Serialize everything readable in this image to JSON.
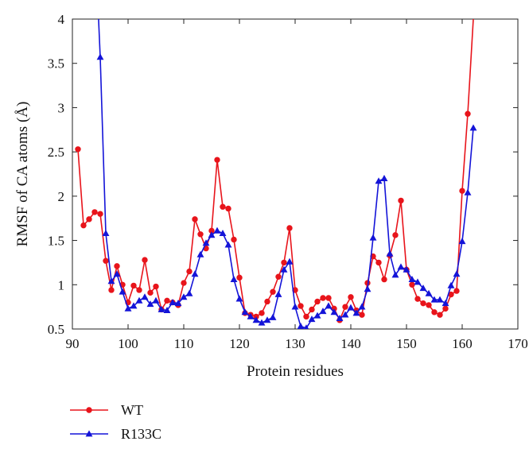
{
  "chart_data": {
    "type": "line",
    "xlabel": "Protein residues",
    "ylabel": "RMSF of CA atoms (Å)",
    "xlim": [
      90,
      170
    ],
    "ylim": [
      0.5,
      4
    ],
    "xticks": [
      90,
      100,
      110,
      120,
      130,
      140,
      150,
      160,
      170
    ],
    "yticks": [
      0.5,
      1,
      1.5,
      2,
      2.5,
      3,
      3.5,
      4
    ],
    "ytick_labels": [
      "0.5",
      "1",
      "1.5",
      "2",
      "2.5",
      "3",
      "3.5",
      "4"
    ],
    "grid": false,
    "legend_position": "bottom-left",
    "series": [
      {
        "name": "WT",
        "color": "#e8141b",
        "marker": "circle",
        "x": [
          91,
          92,
          93,
          94,
          95,
          96,
          97,
          98,
          99,
          100,
          101,
          102,
          103,
          104,
          105,
          106,
          107,
          108,
          109,
          110,
          111,
          112,
          113,
          114,
          115,
          116,
          117,
          118,
          119,
          120,
          121,
          122,
          123,
          124,
          125,
          126,
          127,
          128,
          129,
          130,
          131,
          132,
          133,
          134,
          135,
          136,
          137,
          138,
          139,
          140,
          141,
          142,
          143,
          144,
          145,
          146,
          147,
          148,
          149,
          150,
          151,
          152,
          153,
          154,
          155,
          156,
          157,
          158,
          159,
          160,
          161,
          162
        ],
        "y": [
          2.53,
          1.67,
          1.74,
          1.82,
          1.8,
          1.27,
          0.94,
          1.21,
          1.0,
          0.8,
          0.99,
          0.94,
          1.28,
          0.91,
          0.98,
          0.72,
          0.82,
          0.8,
          0.77,
          1.02,
          1.15,
          1.74,
          1.57,
          1.41,
          1.61,
          2.41,
          1.88,
          1.86,
          1.51,
          1.08,
          0.68,
          0.66,
          0.64,
          0.68,
          0.81,
          0.92,
          1.09,
          1.25,
          1.64,
          0.94,
          0.76,
          0.64,
          0.72,
          0.81,
          0.85,
          0.85,
          0.73,
          0.6,
          0.75,
          0.86,
          0.71,
          0.66,
          1.02,
          1.32,
          1.25,
          1.06,
          1.33,
          1.56,
          1.95,
          1.17,
          1.0,
          0.84,
          0.79,
          0.77,
          0.69,
          0.66,
          0.73,
          0.89,
          0.93,
          2.06,
          2.93,
          4.0
        ]
      },
      {
        "name": "R133C",
        "color": "#1414d8",
        "marker": "triangle",
        "x": [
          94.7,
          95,
          96,
          97,
          98,
          99,
          100,
          101,
          102,
          103,
          104,
          105,
          106,
          107,
          108,
          109,
          110,
          111,
          112,
          113,
          114,
          115,
          116,
          117,
          118,
          119,
          120,
          121,
          122,
          123,
          124,
          125,
          126,
          127,
          128,
          129,
          130,
          131,
          132,
          133,
          134,
          135,
          136,
          137,
          138,
          139,
          140,
          141,
          142,
          143,
          144,
          145,
          146,
          147,
          148,
          149,
          150,
          151,
          152,
          153,
          154,
          155,
          156,
          157,
          158,
          159,
          160,
          161,
          162
        ],
        "y": [
          4.0,
          3.57,
          1.58,
          1.04,
          1.12,
          0.92,
          0.73,
          0.76,
          0.82,
          0.86,
          0.78,
          0.82,
          0.72,
          0.71,
          0.8,
          0.79,
          0.86,
          0.9,
          1.12,
          1.34,
          1.47,
          1.56,
          1.61,
          1.58,
          1.45,
          1.06,
          0.84,
          0.69,
          0.64,
          0.6,
          0.57,
          0.6,
          0.63,
          0.89,
          1.17,
          1.26,
          0.75,
          0.53,
          0.51,
          0.61,
          0.65,
          0.7,
          0.76,
          0.69,
          0.62,
          0.66,
          0.74,
          0.68,
          0.75,
          0.95,
          1.53,
          2.17,
          2.2,
          1.35,
          1.11,
          1.2,
          1.17,
          1.06,
          1.03,
          0.96,
          0.9,
          0.83,
          0.83,
          0.79,
          0.99,
          1.12,
          1.49,
          2.04,
          2.77
        ]
      }
    ]
  }
}
